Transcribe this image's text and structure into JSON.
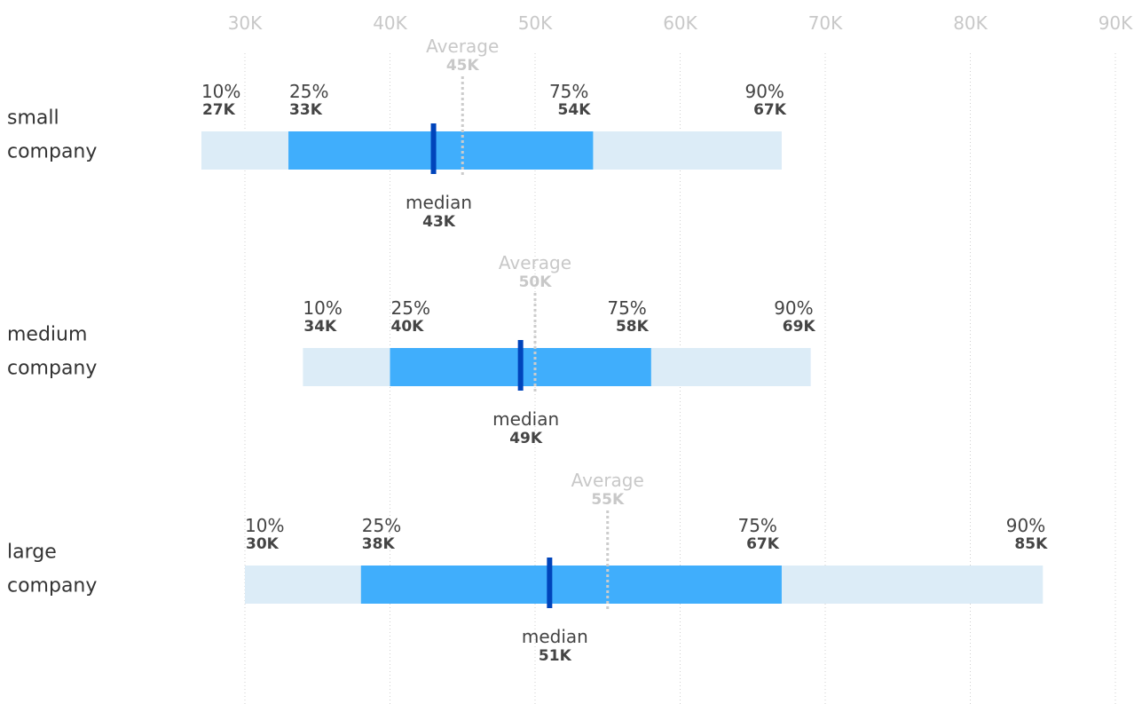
{
  "chart_data": {
    "type": "range-bar",
    "x_axis": {
      "min": 30000,
      "max": 90000,
      "ticks": [
        30000,
        40000,
        50000,
        60000,
        70000,
        80000,
        90000
      ],
      "tick_labels": [
        "30K",
        "40K",
        "50K",
        "60K",
        "70K",
        "80K",
        "90K"
      ],
      "position": "top",
      "grid": true
    },
    "labels": {
      "p10": "10%",
      "p25": "25%",
      "p75": "75%",
      "p90": "90%",
      "median": "median",
      "average": "Average"
    },
    "categories": [
      {
        "name_lines": [
          "small",
          "company"
        ],
        "p10": 27000,
        "p25": 33000,
        "median": 43000,
        "average": 45000,
        "p75": 54000,
        "p90": 67000,
        "p10_label": "27K",
        "p25_label": "33K",
        "median_label": "43K",
        "average_label": "45K",
        "p75_label": "54K",
        "p90_label": "67K"
      },
      {
        "name_lines": [
          "medium",
          "company"
        ],
        "p10": 34000,
        "p25": 40000,
        "median": 49000,
        "average": 50000,
        "p75": 58000,
        "p90": 69000,
        "p10_label": "34K",
        "p25_label": "40K",
        "median_label": "49K",
        "average_label": "50K",
        "p75_label": "58K",
        "p90_label": "69K"
      },
      {
        "name_lines": [
          "large",
          "company"
        ],
        "p10": 30000,
        "p25": 38000,
        "median": 51000,
        "average": 55000,
        "p75": 67000,
        "p90": 85000,
        "p10_label": "30K",
        "p25_label": "38K",
        "median_label": "51K",
        "average_label": "55K",
        "p75_label": "67K",
        "p90_label": "85K"
      }
    ],
    "colors": {
      "outer_range": "#dcecf7",
      "inner_range": "#40aefc",
      "median_marker": "#0044bb",
      "average_marker": "#cccccc"
    }
  }
}
